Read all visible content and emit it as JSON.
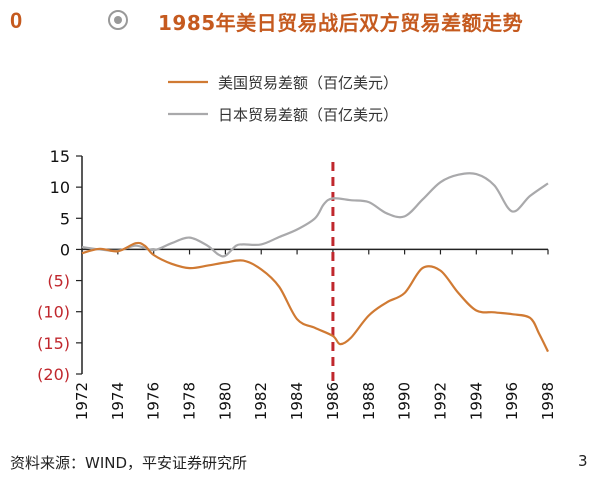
{
  "header": {
    "number": "0",
    "title": "1985年美日贸易战后双方贸易差额走势",
    "accent_color": "#c55a1f",
    "icon": "radio-target-icon"
  },
  "footer": {
    "source": "资料来源：WIND，平安证券研究所",
    "page_number": "3"
  },
  "chart_data": {
    "type": "line",
    "title": "",
    "xlabel": "",
    "ylabel": "",
    "xlim": [
      1972,
      1998
    ],
    "ylim": [
      -20,
      15
    ],
    "yticks": [
      {
        "value": 15,
        "label": "15"
      },
      {
        "value": 10,
        "label": "10"
      },
      {
        "value": 5,
        "label": "5"
      },
      {
        "value": 0,
        "label": "0"
      },
      {
        "value": -5,
        "label": "(5)"
      },
      {
        "value": -10,
        "label": "(10)"
      },
      {
        "value": -15,
        "label": "(15)"
      },
      {
        "value": -20,
        "label": "(20)"
      }
    ],
    "xticks": [
      "1972",
      "1974",
      "1976",
      "1978",
      "1980",
      "1982",
      "1984",
      "1986",
      "1988",
      "1990",
      "1992",
      "1994",
      "1996",
      "1998"
    ],
    "negative_tick_color": "#c0272d",
    "grid": false,
    "legend_position": "top-center",
    "reference_line": {
      "x": 1986.0,
      "style": "dashed",
      "color": "#c0272d"
    },
    "series": [
      {
        "name": "美国贸易差额（百亿美元）",
        "color": "#d07a33",
        "x": [
          1972,
          1973,
          1974,
          1975,
          1975.5,
          1976,
          1977,
          1978,
          1979,
          1980,
          1981,
          1982,
          1983,
          1984,
          1985,
          1986,
          1986.4,
          1987,
          1988,
          1989,
          1990,
          1991,
          1992,
          1993,
          1994,
          1995,
          1996,
          1997,
          1997.5,
          1998
        ],
        "y": [
          -0.6,
          0.1,
          -0.3,
          1.0,
          0.6,
          -0.9,
          -2.3,
          -3.0,
          -2.6,
          -2.1,
          -1.8,
          -3.2,
          -6.0,
          -11.2,
          -12.6,
          -13.9,
          -15.2,
          -14.2,
          -10.6,
          -8.5,
          -7.0,
          -3.0,
          -3.4,
          -7.0,
          -9.8,
          -10.1,
          -10.4,
          -11.0,
          -13.5,
          -16.4
        ]
      },
      {
        "name": "日本贸易差额（百亿美元）",
        "color": "#a9a9ab",
        "x": [
          1972,
          1973,
          1974,
          1975,
          1976,
          1977,
          1978,
          1979,
          1979.6,
          1980,
          1980.6,
          1981,
          1982,
          1983,
          1984,
          1985,
          1985.5,
          1986,
          1987,
          1988,
          1989,
          1990,
          1991,
          1992,
          1993,
          1994,
          1995,
          1996,
          1997,
          1998
        ],
        "y": [
          0.4,
          0.0,
          -0.2,
          0.6,
          -0.1,
          1.0,
          1.9,
          0.6,
          -0.8,
          -1.0,
          0.6,
          0.8,
          0.8,
          2.0,
          3.2,
          5.0,
          7.3,
          8.2,
          7.9,
          7.6,
          5.8,
          5.3,
          8.0,
          10.8,
          12.0,
          12.1,
          10.3,
          6.1,
          8.6,
          10.6
        ]
      }
    ]
  }
}
